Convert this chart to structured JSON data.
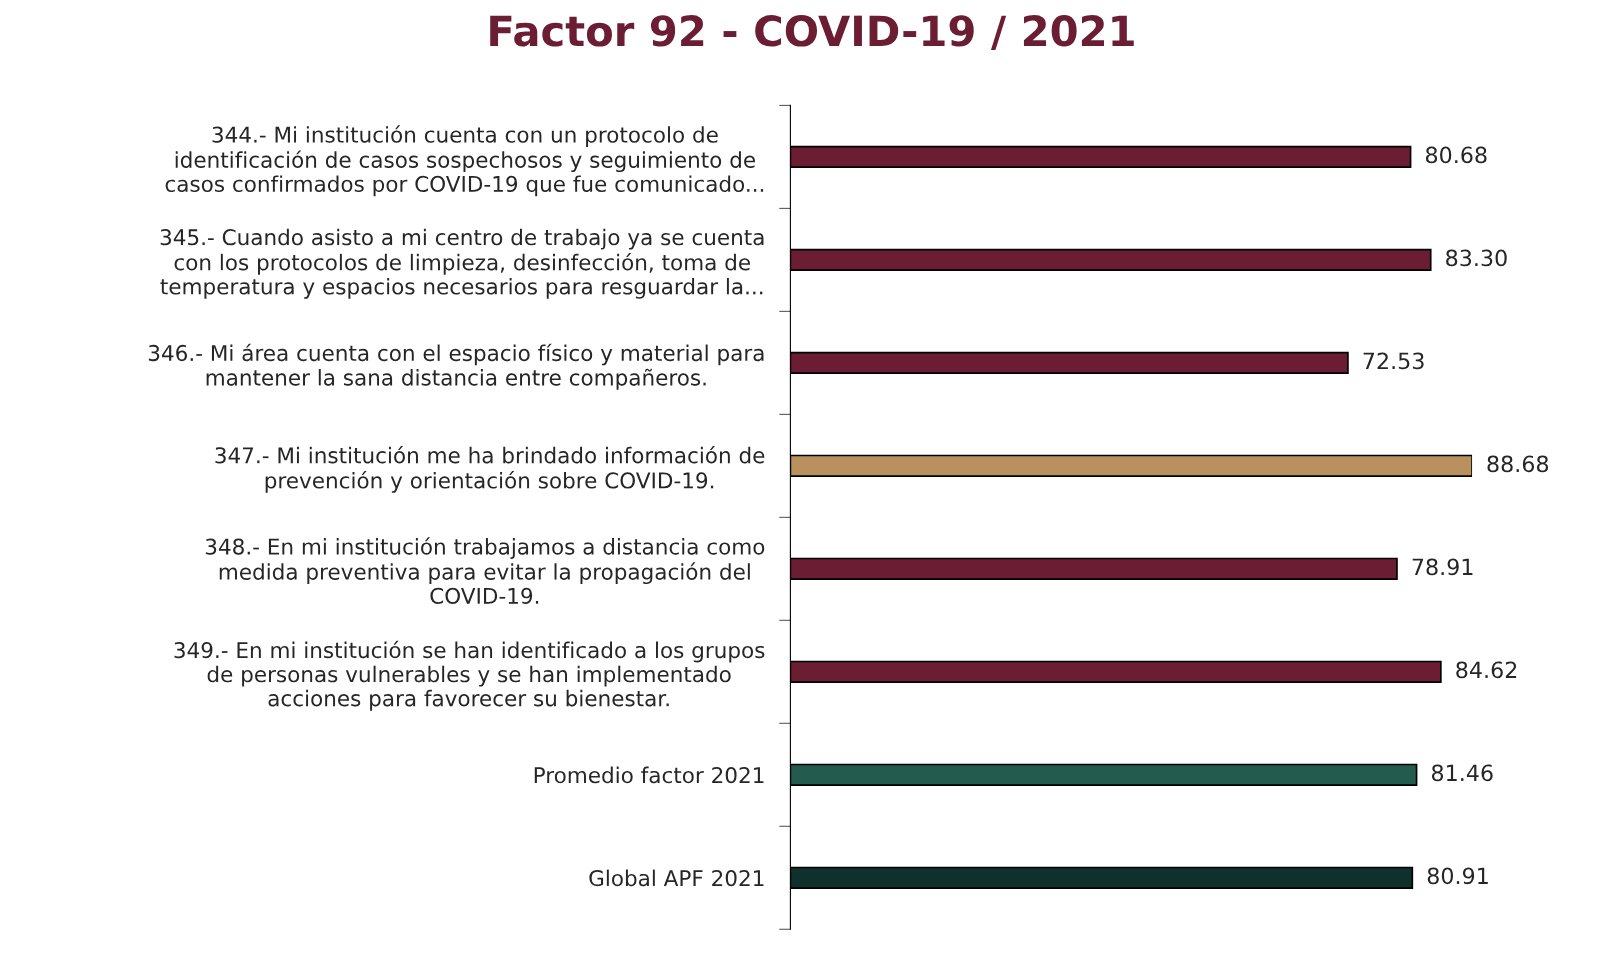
{
  "chart_data": {
    "type": "bar",
    "orientation": "horizontal",
    "title": "Factor 92 - COVID-19 / 2021",
    "categories": [
      "344.- Mi institución cuenta con un protocolo de\nidentificación de casos sospechosos y seguimiento de\ncasos confirmados por COVID-19 que fue comunicado...",
      "345.- Cuando asisto a mi centro de trabajo ya se cuenta\ncon los protocolos de limpieza, desinfección, toma de\ntemperatura y espacios necesarios para resguardar la...",
      "346.- Mi área cuenta con el espacio físico y material para\nmantener la sana distancia entre compañeros.",
      "347.- Mi institución me ha brindado información de\nprevención y orientación sobre COVID-19.",
      "348.- En mi institución trabajamos a distancia como\nmedida preventiva para evitar la propagación del\nCOVID-19.",
      "349.- En mi institución se han identificado a los grupos\nde personas vulnerables y se han implementado\nacciones para favorecer su bienestar.",
      "Promedio factor 2021",
      "Global APF 2021"
    ],
    "values": [
      80.68,
      83.3,
      72.53,
      88.68,
      78.91,
      84.62,
      81.46,
      80.91
    ],
    "value_labels": [
      "80.68",
      "83.30",
      "72.53",
      "88.68",
      "78.91",
      "84.62",
      "81.46",
      "80.91"
    ],
    "colors": [
      "#6b1d33",
      "#6b1d33",
      "#6b1d33",
      "#b8915f",
      "#6b1d33",
      "#6b1d33",
      "#235b4e",
      "#10312b"
    ],
    "tick_labels": "y",
    "grid": false,
    "legend": false
  }
}
